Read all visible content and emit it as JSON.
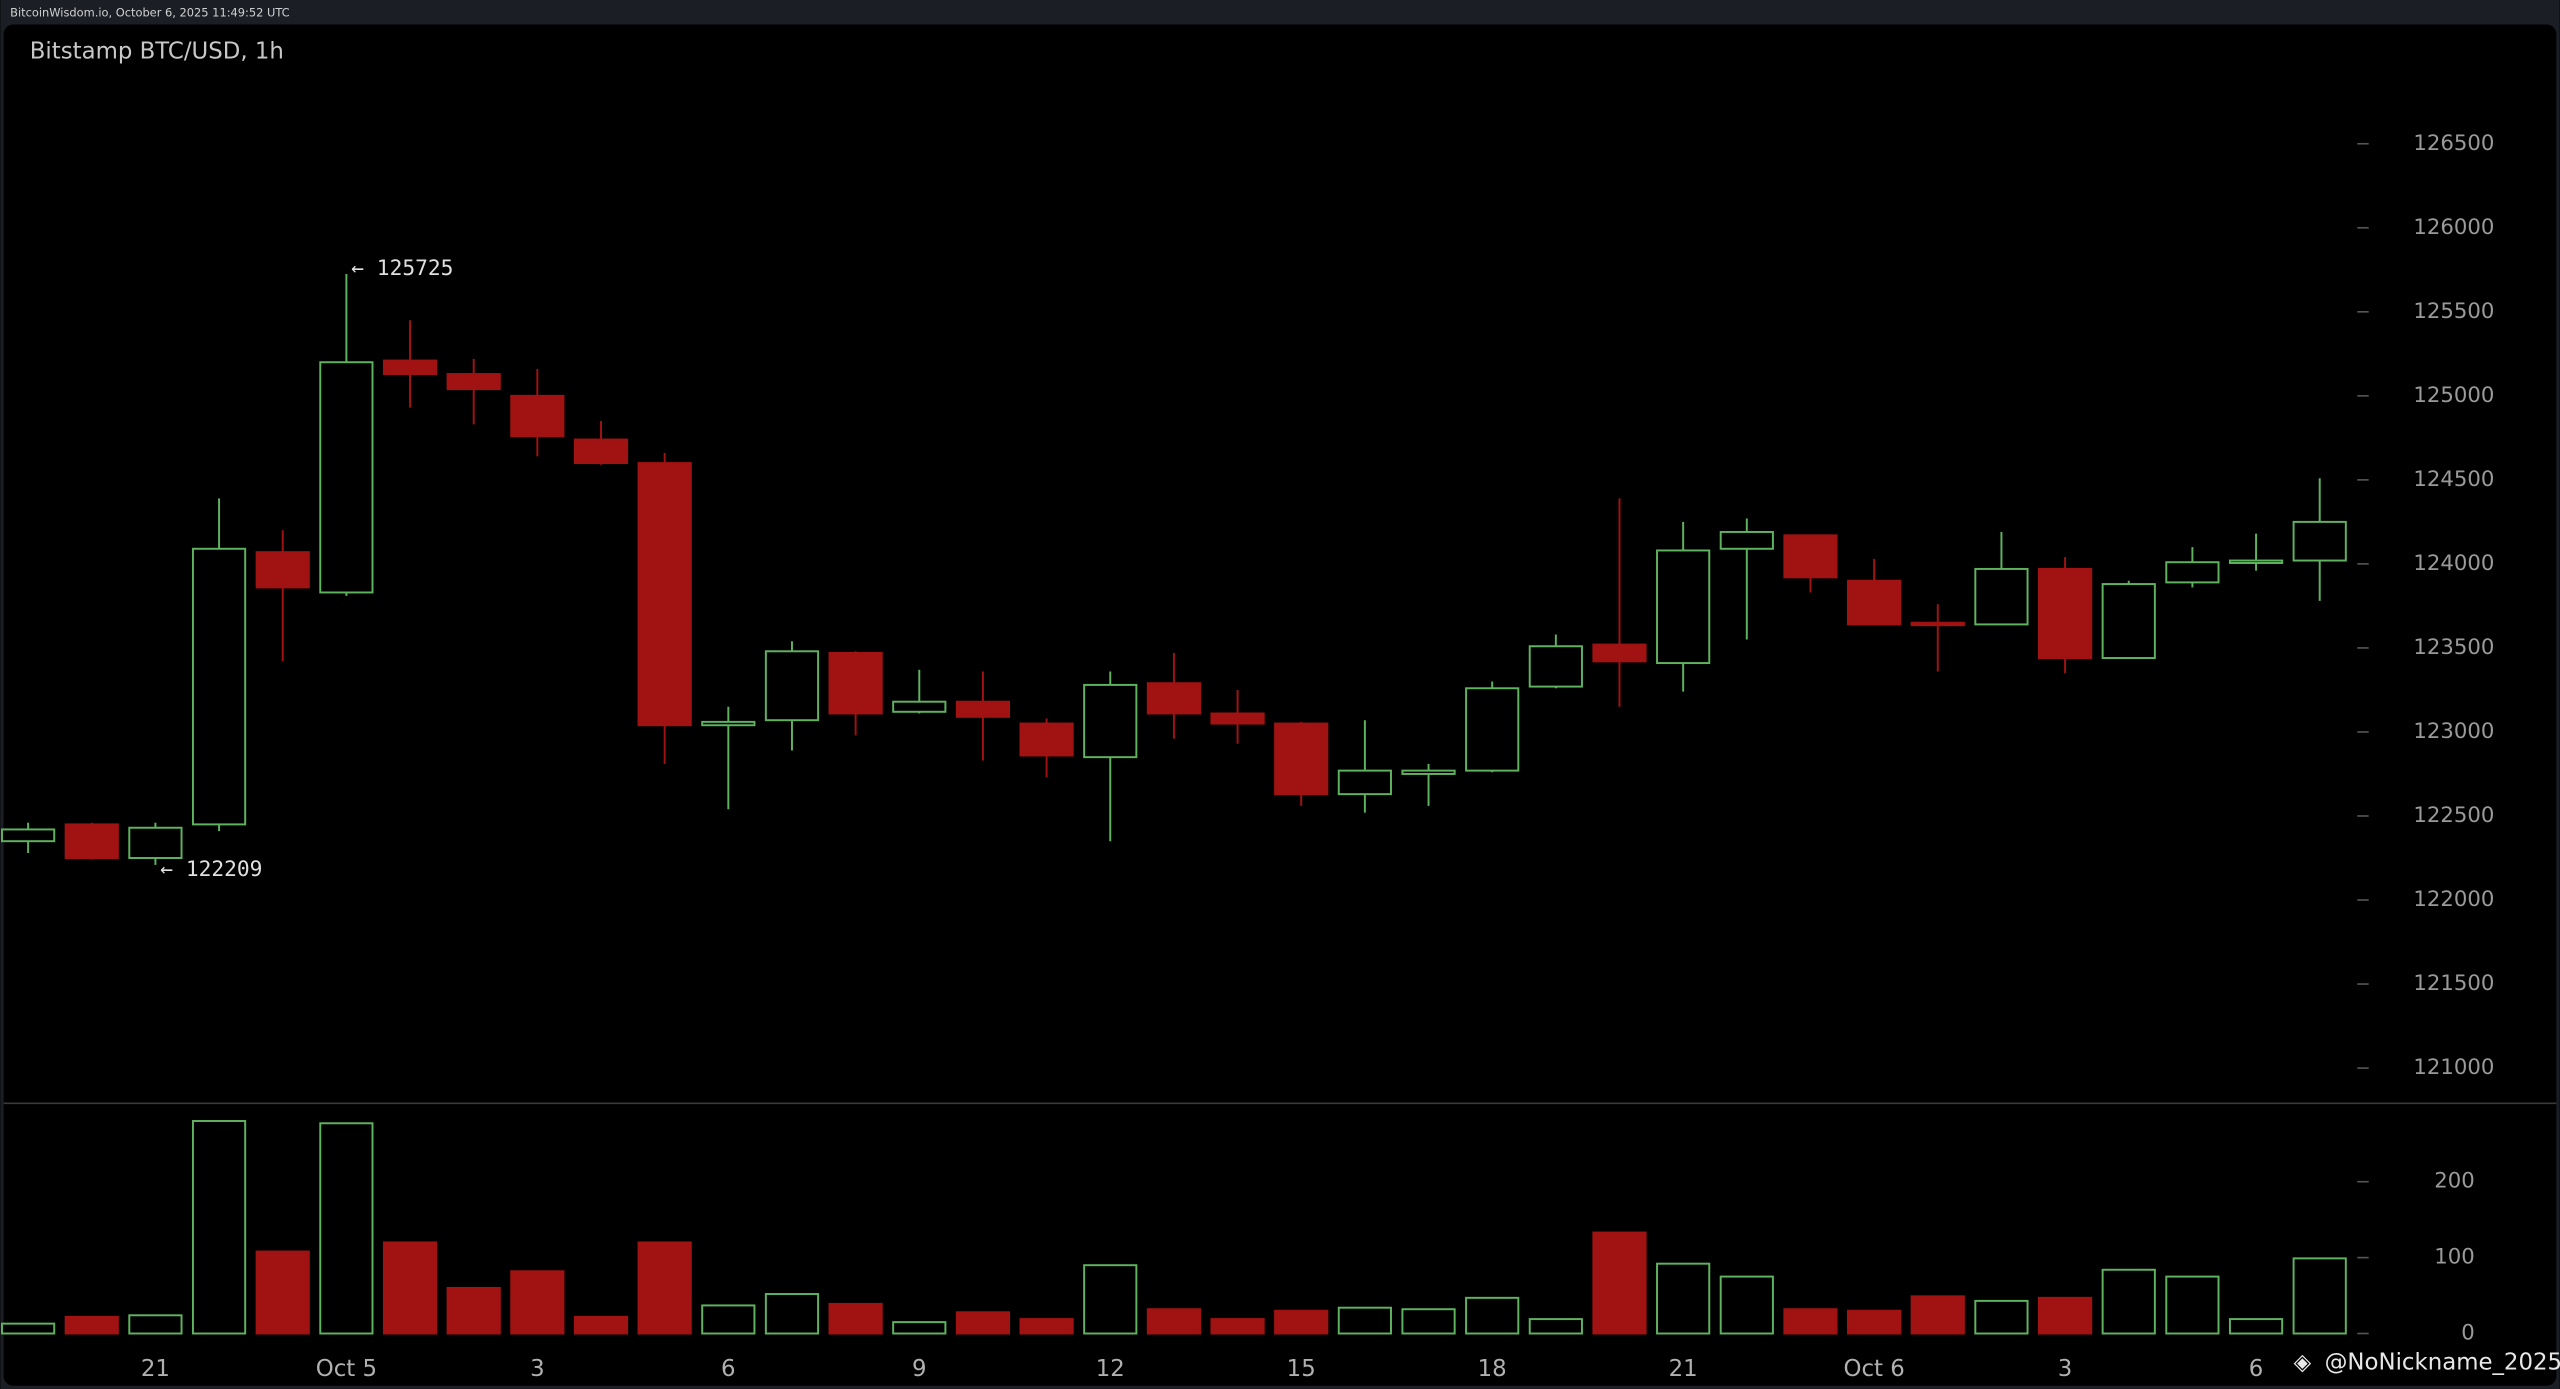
{
  "header": "BitcoinWisdom.io, October 6, 2025 11:49:52 UTC",
  "watermark": "@NoNickname_2025",
  "chart_data": {
    "type": "candlestick",
    "title": "Bitstamp BTC/USD, 1h",
    "categories": [
      null,
      null,
      "21",
      null,
      null,
      "Oct 5",
      null,
      null,
      "3",
      null,
      null,
      "6",
      null,
      null,
      "9",
      null,
      null,
      "12",
      null,
      null,
      "15",
      null,
      null,
      "18",
      null,
      null,
      "21",
      null,
      null,
      "Oct 6",
      null,
      null,
      "3",
      null,
      null,
      "6",
      null
    ],
    "open": [
      122350,
      122450,
      122250,
      122450,
      124070,
      123830,
      125210,
      125130,
      125000,
      124740,
      124600,
      123040,
      123070,
      123470,
      123120,
      123180,
      123050,
      122850,
      123290,
      123110,
      123050,
      122630,
      122750,
      122770,
      123270,
      123520,
      123410,
      124090,
      124170,
      123900,
      123650,
      123640,
      123970,
      123440,
      123890,
      124010,
      124020
    ],
    "high": [
      122460,
      122460,
      122460,
      124390,
      124200,
      125725,
      125450,
      125220,
      125160,
      124850,
      124660,
      123150,
      123540,
      123480,
      123370,
      123360,
      123080,
      123360,
      123470,
      123250,
      123060,
      123070,
      122810,
      123300,
      123580,
      124390,
      124250,
      124270,
      124170,
      124030,
      123760,
      124190,
      124040,
      123900,
      124100,
      124180,
      124510
    ],
    "low": [
      122280,
      122240,
      122209,
      122410,
      123420,
      123810,
      124930,
      124830,
      124640,
      124590,
      122810,
      122540,
      122890,
      122980,
      123110,
      122830,
      122730,
      122350,
      122960,
      122930,
      122560,
      122520,
      122560,
      122760,
      123260,
      123150,
      123240,
      123550,
      123830,
      123640,
      123360,
      123640,
      123350,
      123440,
      123860,
      123960,
      123780
    ],
    "close": [
      122420,
      122250,
      122430,
      124090,
      123860,
      125200,
      125130,
      125040,
      124760,
      124600,
      123040,
      123060,
      123480,
      123110,
      123180,
      123090,
      122860,
      123280,
      123110,
      123050,
      122630,
      122770,
      122770,
      123260,
      123510,
      123420,
      124080,
      124190,
      123920,
      123640,
      123640,
      123970,
      123440,
      123880,
      124010,
      124020,
      124250
    ],
    "volume": [
      13,
      22,
      24,
      280,
      108,
      277,
      120,
      60,
      82,
      22,
      120,
      37,
      52,
      39,
      15,
      28,
      19,
      90,
      32,
      19,
      30,
      34,
      32,
      47,
      19,
      133,
      92,
      75,
      32,
      30,
      49,
      43,
      47,
      84,
      75,
      19,
      99
    ],
    "up_color": "#5fb35f",
    "down_color": "#a11212",
    "ylim": [
      120790,
      127200
    ],
    "yticks": [
      121000,
      121500,
      122000,
      122500,
      123000,
      123500,
      124000,
      124500,
      125000,
      125500,
      126000,
      126500
    ],
    "volume_ylim": [
      0,
      300
    ],
    "volume_yticks": [
      0,
      100,
      200
    ],
    "annotations": [
      {
        "value": 125725,
        "label": "← 125725"
      },
      {
        "value": 122209,
        "label": "← 122209"
      }
    ]
  }
}
